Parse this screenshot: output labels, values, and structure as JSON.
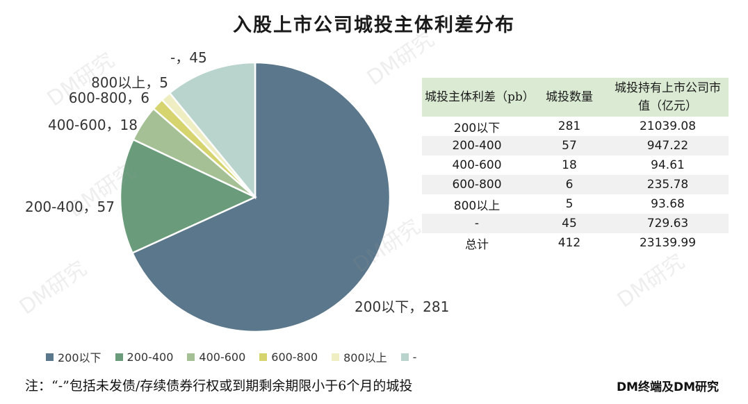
{
  "chart_data": {
    "type": "pie",
    "title": "入股上市公司城投主体利差分布",
    "categories": [
      "200以下",
      "200-400",
      "400-600",
      "600-800",
      "800以上",
      "-"
    ],
    "values": [
      281,
      57,
      18,
      6,
      5,
      45
    ],
    "slice_labels": [
      "200以下，281",
      "200-400，57",
      "400-600，18",
      "600-800，6",
      "800以上，5",
      "-，45"
    ],
    "colors": [
      "#5b778b",
      "#6a9c7b",
      "#a5c094",
      "#d6d46e",
      "#efeec2",
      "#b8d4cd"
    ],
    "legend_position": "bottom",
    "table": {
      "headers": [
        "城投主体利差（pb）",
        "城投数量",
        "城投持有上市公司市值（亿元）"
      ],
      "rows": [
        [
          "200以下",
          "281",
          "21039.08"
        ],
        [
          "200-400",
          "57",
          "947.22"
        ],
        [
          "400-600",
          "18",
          "94.61"
        ],
        [
          "600-800",
          "6",
          "235.78"
        ],
        [
          "800以上",
          "5",
          "93.68"
        ],
        [
          "-",
          "45",
          "729.63"
        ],
        [
          "总计",
          "412",
          "23139.99"
        ]
      ]
    }
  },
  "note": "注：“-”包括未发债/存续债券行权或到期剩余期限小于6个月的城投",
  "source": "DM终端及DM研究",
  "watermark": "DM研究"
}
